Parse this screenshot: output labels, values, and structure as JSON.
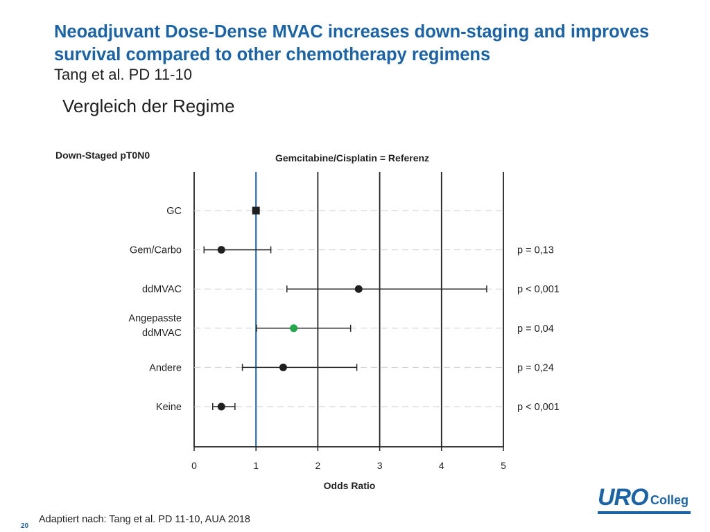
{
  "slide": {
    "title": "Neoadjuvant Dose-Dense MVAC increases down-staging and improves survival compared to other chemotherapy regimens",
    "subtitle": "Tang et al. PD 11-10",
    "section_title": "Vergleich der Regime",
    "footer": "Adaptiert nach: Tang et al. PD 11-10, AUA 2018",
    "page_number": "20",
    "logo": {
      "main": "URO",
      "suffix": "Colleg"
    }
  },
  "chart_data": {
    "type": "forest",
    "title": "Gemcitabine/Cisplatin = Referenz",
    "panel_label": "Down-Staged pT0N0",
    "xlabel": "Odds Ratio",
    "xlim": [
      0,
      5
    ],
    "xticks": [
      0,
      1,
      2,
      3,
      4,
      5
    ],
    "reference_line": 1,
    "grid_vertical": true,
    "rows": [
      {
        "label": [
          "GC"
        ],
        "or": 1.0,
        "ci": null,
        "p": "",
        "marker": "square",
        "color": "#1f1f1f"
      },
      {
        "label": [
          "Gem/Carbo"
        ],
        "or": 0.44,
        "ci": [
          0.16,
          1.24
        ],
        "p": "p = 0,13",
        "marker": "circle",
        "color": "#1f1f1f"
      },
      {
        "label": [
          "ddMVAC"
        ],
        "or": 2.66,
        "ci": [
          1.5,
          4.73
        ],
        "p": "p < 0,001",
        "marker": "circle",
        "color": "#1f1f1f"
      },
      {
        "label": [
          "Angepasste",
          "ddMVAC"
        ],
        "or": 1.61,
        "ci": [
          1.01,
          2.53
        ],
        "p": "p = 0,04",
        "marker": "circle",
        "color": "#22a84a"
      },
      {
        "label": [
          "Andere"
        ],
        "or": 1.44,
        "ci": [
          0.78,
          2.63
        ],
        "p": "p = 0,24",
        "marker": "circle",
        "color": "#1f1f1f"
      },
      {
        "label": [
          "Keine"
        ],
        "or": 0.44,
        "ci": [
          0.3,
          0.66
        ],
        "p": "p < 0,001",
        "marker": "circle",
        "color": "#1f1f1f"
      }
    ],
    "colors": {
      "reference": "#1b63a7",
      "grid": "#222222",
      "row_guide": "#cfcfcf",
      "text": "#1f1f1f"
    }
  }
}
